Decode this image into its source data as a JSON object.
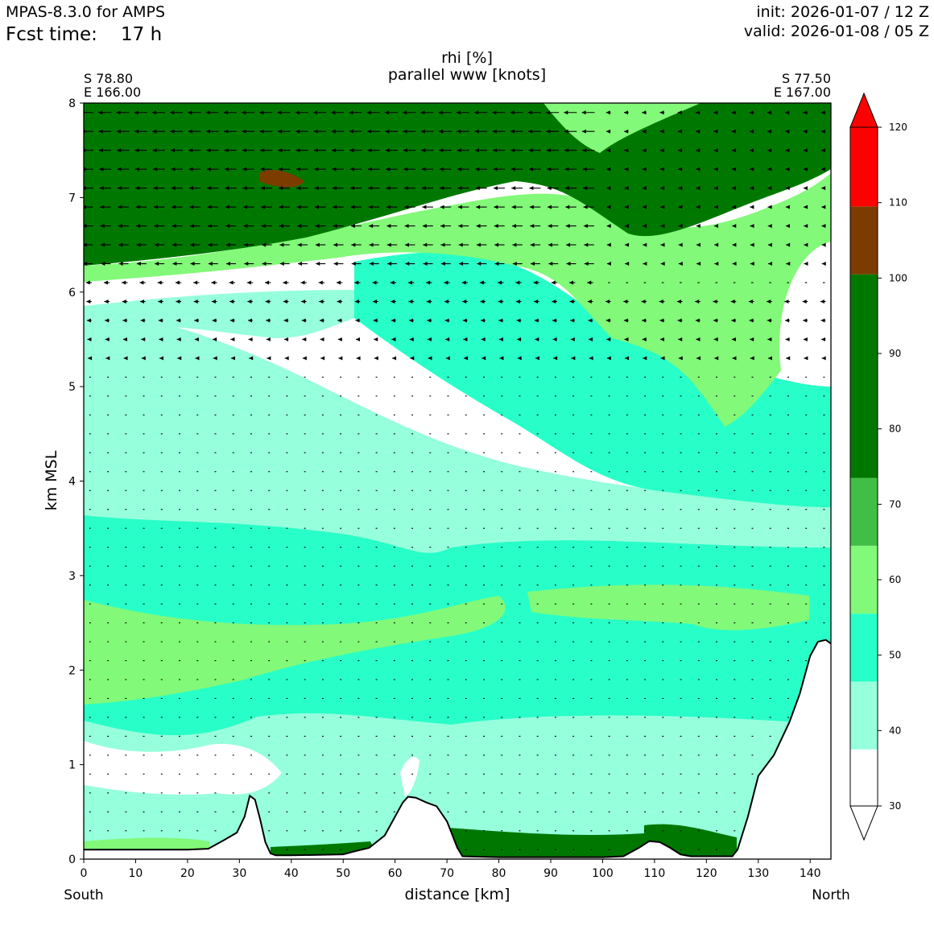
{
  "header": {
    "model": "MPAS-8.3.0 for AMPS",
    "fcst_label": "Fcst time:",
    "fcst_value": "17 h",
    "init": "init: 2026-01-07 / 12 Z",
    "valid": "valid: 2026-01-08 / 05 Z"
  },
  "chart_data": {
    "type": "cross-section",
    "title_line1": "rhi [%]",
    "title_line2": "parallel www [knots]",
    "start_point": {
      "lat": "S 78.80",
      "lon": "E 166.00"
    },
    "end_point": {
      "lat": "S 77.50",
      "lon": "E 167.00"
    },
    "xlabel": "distance [km]",
    "ylabel": "km MSL",
    "xlim": [
      0,
      144
    ],
    "ylim": [
      0,
      8
    ],
    "x_ticks": [
      "0",
      "10",
      "20",
      "30",
      "40",
      "50",
      "60",
      "70",
      "80",
      "90",
      "100",
      "110",
      "120",
      "130",
      "140"
    ],
    "y_ticks": [
      "0",
      "1",
      "2",
      "3",
      "4",
      "5",
      "6",
      "7",
      "8"
    ],
    "left_end_label": "South",
    "right_end_label": "North",
    "colorbar": {
      "ticks": [
        "30",
        "40",
        "50",
        "60",
        "70",
        "80",
        "90",
        "100",
        "110",
        "120"
      ],
      "bands": [
        {
          "from": 30,
          "to": 37.5,
          "color": "#ffffff"
        },
        {
          "from": 37.5,
          "to": 46.5,
          "color": "#96ffdc"
        },
        {
          "from": 46.5,
          "to": 55.5,
          "color": "#28ffc8"
        },
        {
          "from": 55.5,
          "to": 64.5,
          "color": "#82f978"
        },
        {
          "from": 64.5,
          "to": 73.5,
          "color": "#41be46"
        },
        {
          "from": 73.5,
          "to": 100.5,
          "color": "#007800"
        },
        {
          "from": 100.5,
          "to": 109.5,
          "color": "#7c3c00"
        },
        {
          "from": 109.5,
          "to": 120,
          "color": "#ff0000"
        }
      ]
    },
    "terrain": {
      "x": [
        0,
        10,
        20,
        24,
        27,
        29.5,
        31,
        32,
        33,
        34,
        35,
        36,
        37,
        40,
        50,
        52,
        55,
        58,
        60,
        61.5,
        62.5,
        64,
        66,
        68,
        70,
        72,
        73,
        80,
        90,
        100,
        104,
        107,
        109,
        111,
        113,
        115,
        117,
        120,
        125,
        126,
        128,
        130,
        133,
        136,
        138,
        140,
        141.5,
        143,
        144
      ],
      "y": [
        0.1,
        0.1,
        0.1,
        0.11,
        0.2,
        0.28,
        0.45,
        0.67,
        0.63,
        0.42,
        0.18,
        0.06,
        0.04,
        0.04,
        0.05,
        0.08,
        0.12,
        0.25,
        0.45,
        0.6,
        0.66,
        0.65,
        0.6,
        0.56,
        0.4,
        0.12,
        0.03,
        0.02,
        0.02,
        0.02,
        0.03,
        0.12,
        0.19,
        0.18,
        0.12,
        0.05,
        0.03,
        0.03,
        0.03,
        0.1,
        0.45,
        0.88,
        1.1,
        1.45,
        1.75,
        2.15,
        2.3,
        2.32,
        2.28
      ]
    },
    "rhi_regions": [
      {
        "level": "40-50",
        "approx_layer_km": [
          5.6,
          6.1
        ]
      },
      {
        "level": "50-60",
        "approx_layer_km": [
          1.5,
          3.9
        ]
      },
      {
        "level": "60-70",
        "approx_layer_km": [
          1.6,
          2.7
        ]
      },
      {
        "level": "80-100",
        "approx_layer_km": [
          6.3,
          8.0
        ]
      },
      {
        "level": "100-110",
        "center_km": [
          37,
          7.2
        ]
      }
    ]
  }
}
